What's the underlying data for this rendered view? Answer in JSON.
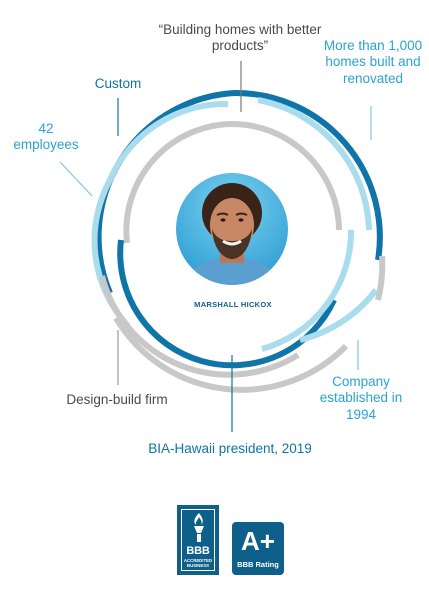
{
  "facts": {
    "quote": "“Building homes with better products”",
    "homes": "More than 1,000 homes built and renovated",
    "custom": "Custom",
    "employees": "42 employees",
    "design_build": "Design-build firm",
    "established": "Company established in 1994",
    "bia": "BIA-Hawaii president, 2019"
  },
  "person": {
    "name": "MARSHALL HICKOX"
  },
  "badges": {
    "bbb_word": "BBB",
    "bbb_subtitle": "ACCREDITED BUSINESS",
    "grade": "A+",
    "rating_label": "BBB Rating"
  },
  "colors": {
    "dark_blue": "#0f74a8",
    "light_blue": "#a9dced",
    "gray": "#c8c8c8",
    "badge_blue": "#0e5f89"
  }
}
